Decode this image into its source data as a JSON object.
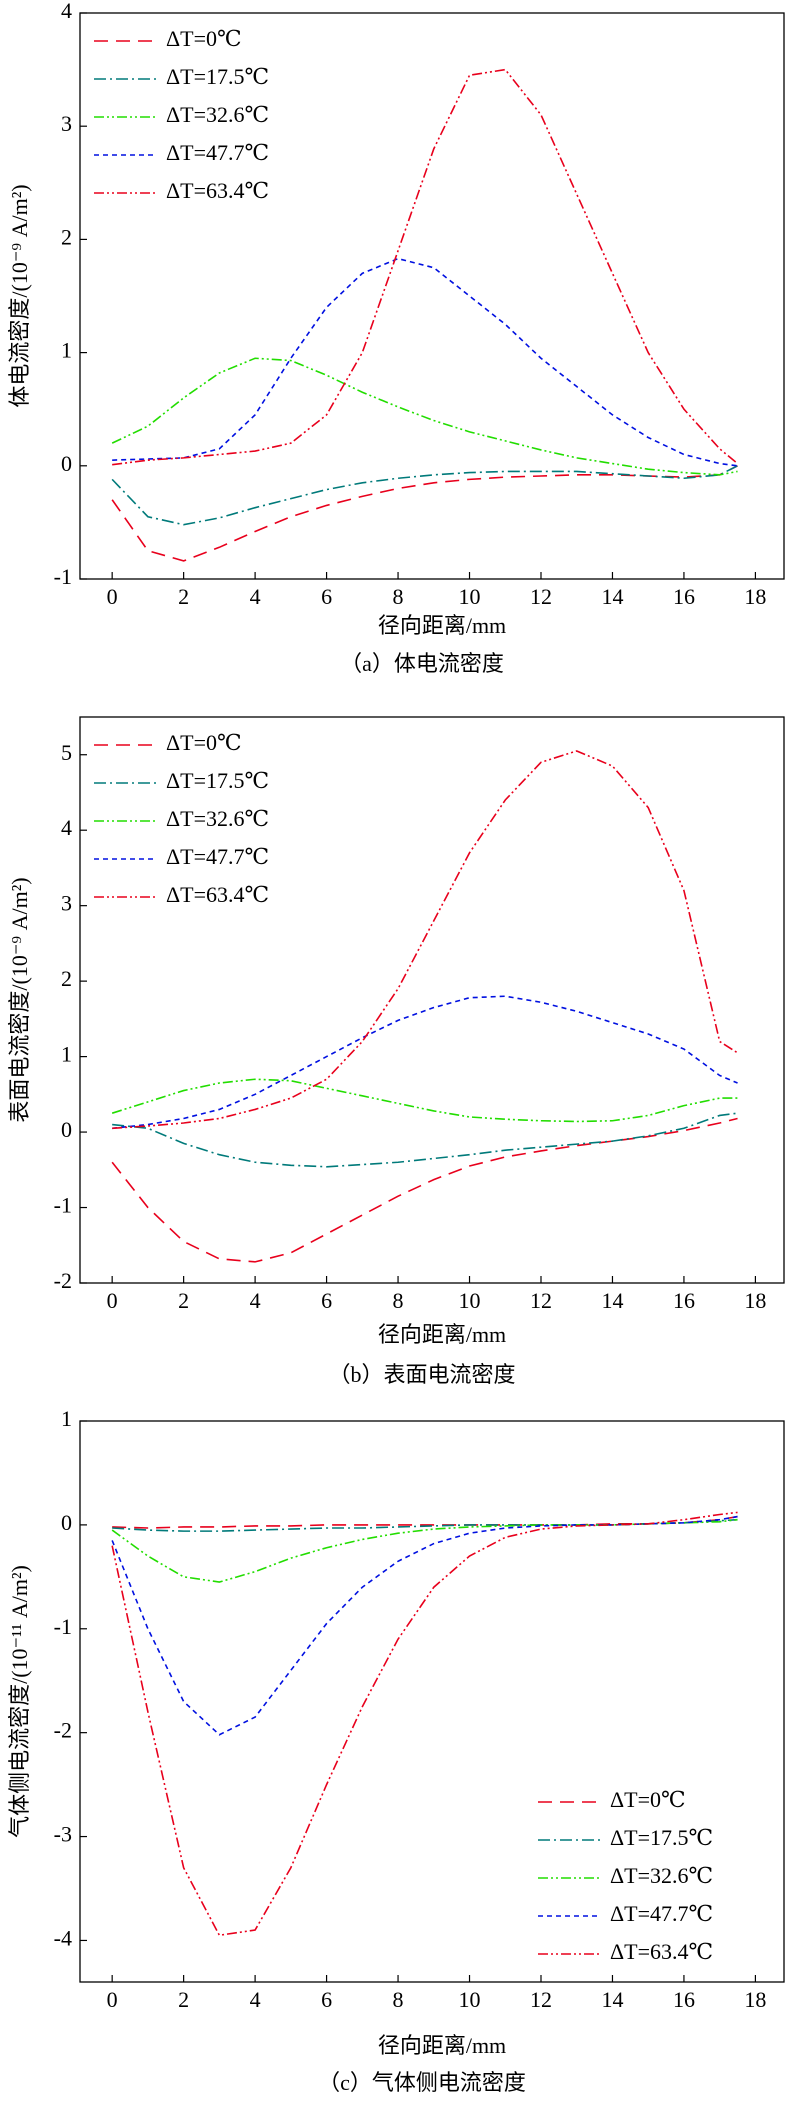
{
  "chart_data": [
    {
      "type": "line",
      "caption": "（a）体电流密度",
      "xlabel": "径向距离/mm",
      "ylabel": "体电流密度/(10⁻⁹ A/m²)",
      "x": [
        0,
        1,
        2,
        3,
        4,
        5,
        6,
        7,
        8,
        9,
        10,
        11,
        12,
        13,
        14,
        15,
        16,
        17,
        17.5
      ],
      "xlim": [
        -0.9,
        18.8
      ],
      "xticks": [
        0,
        2,
        4,
        6,
        8,
        10,
        12,
        14,
        16,
        18
      ],
      "ylim": [
        -1,
        4
      ],
      "yticks": [
        -1,
        0,
        1,
        2,
        3,
        4
      ],
      "legend": "upper left",
      "series": [
        {
          "name": "ΔT=0℃",
          "color": "#e8001c",
          "dash": "14 8",
          "values": [
            -0.3,
            -0.75,
            -0.84,
            -0.72,
            -0.58,
            -0.45,
            -0.35,
            -0.27,
            -0.2,
            -0.15,
            -0.12,
            -0.1,
            -0.09,
            -0.08,
            -0.08,
            -0.09,
            -0.1,
            -0.08,
            0
          ]
        },
        {
          "name": "ΔT=17.5℃",
          "color": "#007a7a",
          "dash": "12 4 2 4",
          "values": [
            -0.12,
            -0.45,
            -0.52,
            -0.46,
            -0.37,
            -0.29,
            -0.21,
            -0.15,
            -0.11,
            -0.08,
            -0.06,
            -0.05,
            -0.05,
            -0.05,
            -0.07,
            -0.09,
            -0.11,
            -0.08,
            0
          ]
        },
        {
          "name": "ΔT=32.6℃",
          "color": "#22dd00",
          "dash": "10 3 2 3 2 3",
          "values": [
            0.2,
            0.35,
            0.6,
            0.82,
            0.95,
            0.93,
            0.8,
            0.65,
            0.52,
            0.4,
            0.3,
            0.22,
            0.14,
            0.07,
            0.02,
            -0.03,
            -0.06,
            -0.08,
            -0.05
          ]
        },
        {
          "name": "ΔT=47.7℃",
          "color": "#0010e0",
          "dash": "5 4",
          "values": [
            0.05,
            0.06,
            0.07,
            0.15,
            0.45,
            0.95,
            1.4,
            1.7,
            1.83,
            1.75,
            1.5,
            1.25,
            0.95,
            0.7,
            0.45,
            0.25,
            0.1,
            0.02,
            0
          ]
        },
        {
          "name": "ΔT=63.4℃",
          "color": "#e8001c",
          "dash": "10 3 2 3 2 3",
          "values": [
            0.01,
            0.05,
            0.07,
            0.1,
            0.13,
            0.2,
            0.45,
            1.0,
            1.9,
            2.8,
            3.45,
            3.5,
            3.1,
            2.4,
            1.7,
            1.0,
            0.5,
            0.15,
            0.02
          ]
        }
      ]
    },
    {
      "type": "line",
      "caption": "（b）表面电流密度",
      "xlabel": "径向距离/mm",
      "ylabel": "表面电流密度/(10⁻⁹ A/m²)",
      "x": [
        0,
        1,
        2,
        3,
        4,
        5,
        6,
        7,
        8,
        9,
        10,
        11,
        12,
        13,
        14,
        15,
        16,
        17,
        17.5
      ],
      "xlim": [
        -0.9,
        18.8
      ],
      "xticks": [
        0,
        2,
        4,
        6,
        8,
        10,
        12,
        14,
        16,
        18
      ],
      "ylim": [
        -2,
        5.5
      ],
      "yticks": [
        -2,
        -1,
        0,
        1,
        2,
        3,
        4,
        5
      ],
      "legend": "upper left",
      "series": [
        {
          "name": "ΔT=0℃",
          "color": "#e8001c",
          "dash": "14 8",
          "values": [
            -0.4,
            -1.0,
            -1.45,
            -1.68,
            -1.72,
            -1.6,
            -1.35,
            -1.1,
            -0.85,
            -0.63,
            -0.45,
            -0.33,
            -0.25,
            -0.18,
            -0.12,
            -0.06,
            0.02,
            0.12,
            0.18
          ]
        },
        {
          "name": "ΔT=17.5℃",
          "color": "#007a7a",
          "dash": "12 4 2 4",
          "values": [
            0.1,
            0.05,
            -0.15,
            -0.3,
            -0.4,
            -0.44,
            -0.46,
            -0.43,
            -0.4,
            -0.35,
            -0.3,
            -0.24,
            -0.2,
            -0.16,
            -0.12,
            -0.05,
            0.05,
            0.22,
            0.25
          ]
        },
        {
          "name": "ΔT=32.6℃",
          "color": "#22dd00",
          "dash": "10 3 2 3 2 3",
          "values": [
            0.25,
            0.4,
            0.55,
            0.65,
            0.7,
            0.68,
            0.58,
            0.48,
            0.38,
            0.28,
            0.2,
            0.17,
            0.15,
            0.14,
            0.15,
            0.22,
            0.35,
            0.45,
            0.45
          ]
        },
        {
          "name": "ΔT=47.7℃",
          "color": "#0010e0",
          "dash": "5 4",
          "values": [
            0.05,
            0.1,
            0.18,
            0.3,
            0.5,
            0.75,
            1.0,
            1.25,
            1.48,
            1.65,
            1.78,
            1.8,
            1.72,
            1.6,
            1.45,
            1.3,
            1.1,
            0.75,
            0.65
          ]
        },
        {
          "name": "ΔT=63.4℃",
          "color": "#e8001c",
          "dash": "10 3 2 3 2 3",
          "values": [
            0.05,
            0.08,
            0.12,
            0.18,
            0.3,
            0.45,
            0.7,
            1.2,
            1.9,
            2.8,
            3.7,
            4.4,
            4.9,
            5.05,
            4.85,
            4.3,
            3.2,
            1.2,
            1.05
          ]
        }
      ]
    },
    {
      "type": "line",
      "caption": "（c）气体侧电流密度",
      "xlabel": "径向距离/mm",
      "ylabel": "气体侧电流密度/(10⁻¹¹ A/m²)",
      "x": [
        0,
        1,
        2,
        3,
        4,
        5,
        6,
        7,
        8,
        9,
        10,
        11,
        12,
        13,
        14,
        15,
        16,
        17,
        17.5
      ],
      "xlim": [
        -0.9,
        18.8
      ],
      "xticks": [
        0,
        2,
        4,
        6,
        8,
        10,
        12,
        14,
        16,
        18
      ],
      "ylim": [
        -4.4,
        1
      ],
      "yticks": [
        -4,
        -3,
        -2,
        -1,
        0,
        1
      ],
      "legend": "lower right",
      "series": [
        {
          "name": "ΔT=0℃",
          "color": "#e8001c",
          "dash": "14 8",
          "values": [
            -0.02,
            -0.03,
            -0.02,
            -0.02,
            -0.01,
            -0.01,
            0,
            0,
            0,
            0,
            0,
            0,
            0,
            0,
            0.01,
            0.01,
            0.02,
            0.05,
            0.08
          ]
        },
        {
          "name": "ΔT=17.5℃",
          "color": "#007a7a",
          "dash": "12 4 2 4",
          "values": [
            -0.03,
            -0.05,
            -0.06,
            -0.06,
            -0.05,
            -0.04,
            -0.03,
            -0.03,
            -0.02,
            -0.01,
            0,
            0,
            0,
            0,
            0,
            0.01,
            0.02,
            0.04,
            0.05
          ]
        },
        {
          "name": "ΔT=32.6℃",
          "color": "#22dd00",
          "dash": "10 3 2 3 2 3",
          "values": [
            -0.05,
            -0.3,
            -0.5,
            -0.55,
            -0.45,
            -0.32,
            -0.22,
            -0.14,
            -0.08,
            -0.04,
            -0.02,
            -0.01,
            0,
            0,
            0,
            0.01,
            0.02,
            0.03,
            0.05
          ]
        },
        {
          "name": "ΔT=47.7℃",
          "color": "#0010e0",
          "dash": "5 4",
          "values": [
            -0.15,
            -1.0,
            -1.7,
            -2.02,
            -1.85,
            -1.4,
            -0.95,
            -0.6,
            -0.35,
            -0.18,
            -0.08,
            -0.03,
            -0.01,
            0,
            0,
            0.01,
            0.02,
            0.05,
            0.08
          ]
        },
        {
          "name": "ΔT=63.4℃",
          "color": "#e8001c",
          "dash": "10 3 2 3 2 3",
          "values": [
            -0.2,
            -1.8,
            -3.3,
            -3.95,
            -3.9,
            -3.3,
            -2.5,
            -1.75,
            -1.1,
            -0.6,
            -0.3,
            -0.12,
            -0.04,
            -0.01,
            0,
            0.01,
            0.05,
            0.1,
            0.12
          ]
        }
      ]
    }
  ]
}
